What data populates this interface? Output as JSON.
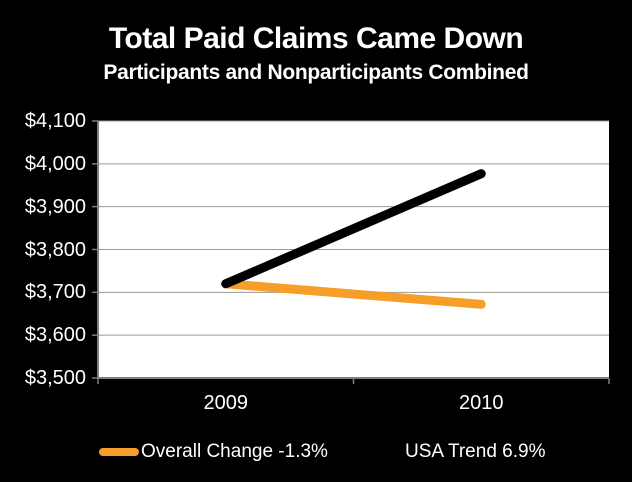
{
  "chart_data": {
    "type": "line",
    "title": "Total Paid Claims Came Down",
    "subtitle": "Participants and Nonparticipants Combined",
    "categories": [
      "2009",
      "2010"
    ],
    "series": [
      {
        "name": "Overall Change -1.3%",
        "values": [
          3720,
          3672
        ],
        "color": "#F79E28"
      },
      {
        "name": "USA Trend 6.9%",
        "values": [
          3720,
          3977
        ],
        "color": "#000000"
      }
    ],
    "ylim": [
      3500,
      4100
    ],
    "yticks": [
      4100,
      4000,
      3900,
      3800,
      3700,
      3600,
      3500
    ],
    "ytick_labels": [
      "$4,100",
      "$4,000",
      "$3,900",
      "$3,800",
      "$3,700",
      "$3,600",
      "$3,500"
    ],
    "y_prefix": "$",
    "grid": true,
    "legend_position": "bottom"
  },
  "legend": {
    "entries": [
      {
        "label": "Overall Change -1.3%",
        "color": "#F79E28"
      },
      {
        "label": "USA Trend 6.9%",
        "color": "#000000"
      }
    ]
  },
  "colors": {
    "background": "#000000",
    "plot_background": "#FFFFFF",
    "gridline": "#9A9A9A",
    "axis": "#7F7F7F",
    "text": "#FFFFFF",
    "series_orange": "#F79E28",
    "series_black": "#000000"
  }
}
